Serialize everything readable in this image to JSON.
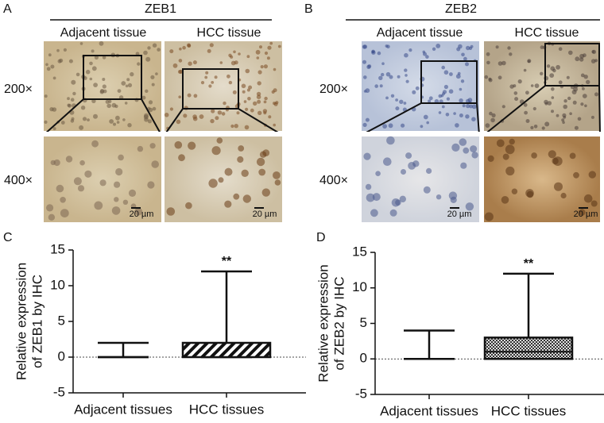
{
  "figure": {
    "panel_a": {
      "letter": "A",
      "title": "ZEB1",
      "columns": [
        "Adjacent tissue",
        "HCC tissue"
      ],
      "rows": [
        "200×",
        "400×"
      ],
      "scale_bars": [
        "20 µm",
        "20 µm"
      ]
    },
    "panel_b": {
      "letter": "B",
      "title": "ZEB2",
      "columns": [
        "Adjacent tissue",
        "HCC tissue"
      ],
      "rows": [
        "200×",
        "400×"
      ],
      "scale_bars": [
        "20 µm",
        "20 µm"
      ]
    }
  },
  "chart_data": [
    {
      "type": "box",
      "letter": "C",
      "y_label": [
        "Relative expression",
        "of ZEB1 by IHC"
      ],
      "categories": [
        "Adjacent tissues",
        "HCC tissues"
      ],
      "min": [
        0,
        0
      ],
      "q1": [
        0,
        0
      ],
      "median": [
        0,
        0
      ],
      "q3": [
        0,
        2
      ],
      "max": [
        2,
        12
      ],
      "box_patterns": [
        "none",
        "diagonal"
      ],
      "ylim": [
        -5,
        15
      ],
      "yticks": [
        -5,
        0,
        5,
        10,
        15
      ],
      "reference_line": 0,
      "annotation": {
        "text": "**",
        "category": "HCC tissues"
      }
    },
    {
      "type": "box",
      "letter": "D",
      "y_label": [
        "Relative expression",
        "of ZEB2 by IHC"
      ],
      "categories": [
        "Adjacent tissues",
        "HCC tissues"
      ],
      "min": [
        0,
        0
      ],
      "q1": [
        0,
        0
      ],
      "median": [
        0,
        1
      ],
      "q3": [
        0,
        3
      ],
      "max": [
        4,
        12
      ],
      "box_patterns": [
        "none",
        "crosshatch"
      ],
      "ylim": [
        -5,
        15
      ],
      "yticks": [
        -5,
        0,
        5,
        10,
        15
      ],
      "reference_line": 0,
      "annotation": {
        "text": "**",
        "category": "HCC tissues"
      }
    }
  ]
}
